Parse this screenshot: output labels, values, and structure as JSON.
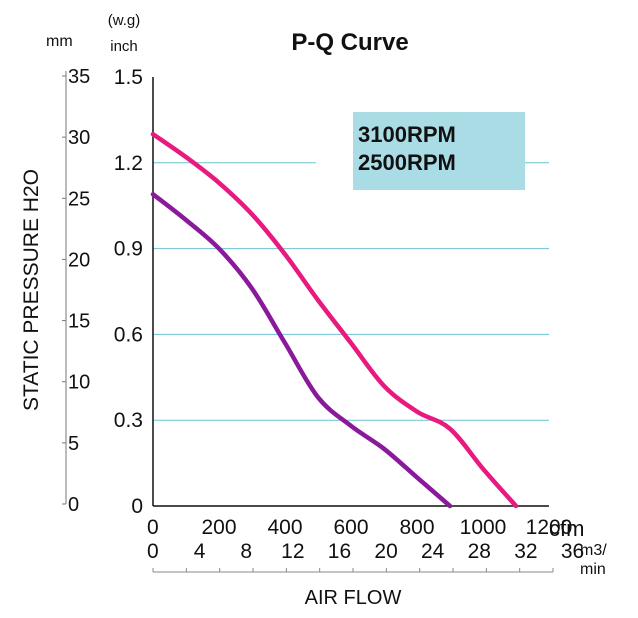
{
  "chart_data": {
    "type": "line",
    "title": "P-Q Curve",
    "ylabel": "STATIC PRESSURE H2O",
    "xlabel": "AIR FLOW",
    "x_unit_cfm": "cfm",
    "x_unit_m3_top": "m3/",
    "x_unit_m3_bottom": "min",
    "y_unit_mm": "mm",
    "y_unit_inch_top": "(w.g)",
    "y_unit_inch_bottom": "inch",
    "xlim": [
      0,
      1200
    ],
    "ylim_inch": [
      0,
      1.5
    ],
    "grid": "horizontal",
    "x_ticks_cfm": [
      "0",
      "200",
      "400",
      "600",
      "800",
      "1000",
      "1200"
    ],
    "x_ticks_m3min": [
      "0",
      "4",
      "8",
      "12",
      "16",
      "20",
      "24",
      "28",
      "32",
      "36"
    ],
    "y_ticks_inch": [
      "0",
      "0.3",
      "0.6",
      "0.9",
      "1.2",
      "1.5"
    ],
    "y_ticks_mm": [
      "0",
      "5",
      "10",
      "15",
      "20",
      "25",
      "30",
      "35"
    ],
    "legend": {
      "placement": "top-right",
      "labels": [
        "3100RPM",
        "2500RPM"
      ]
    },
    "series": [
      {
        "name": "3100RPM",
        "color": "#e8197f",
        "points": [
          [
            0,
            1.3
          ],
          [
            100,
            1.22
          ],
          [
            200,
            1.13
          ],
          [
            300,
            1.02
          ],
          [
            400,
            0.88
          ],
          [
            500,
            0.72
          ],
          [
            600,
            0.57
          ],
          [
            700,
            0.42
          ],
          [
            800,
            0.33
          ],
          [
            900,
            0.27
          ],
          [
            1000,
            0.13
          ],
          [
            1100,
            0.0
          ]
        ]
      },
      {
        "name": "2500RPM",
        "color": "#8a1a9b",
        "points": [
          [
            0,
            1.09
          ],
          [
            100,
            1.0
          ],
          [
            200,
            0.9
          ],
          [
            300,
            0.76
          ],
          [
            400,
            0.57
          ],
          [
            500,
            0.38
          ],
          [
            600,
            0.28
          ],
          [
            700,
            0.2
          ],
          [
            800,
            0.1
          ],
          [
            900,
            0.0
          ]
        ]
      }
    ]
  }
}
